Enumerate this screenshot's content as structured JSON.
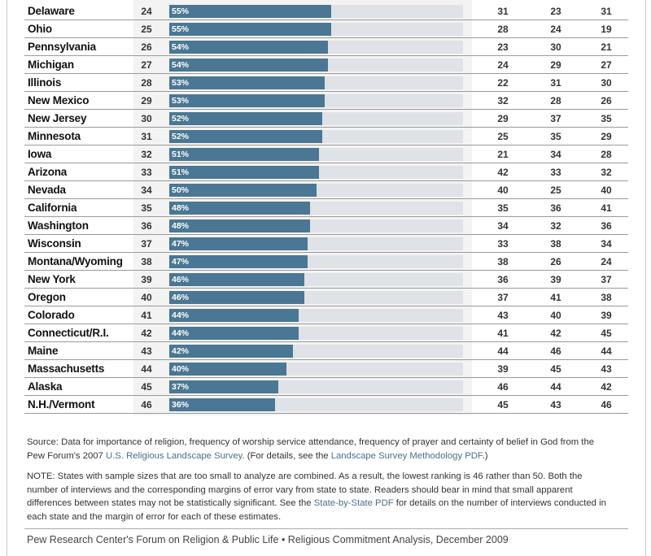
{
  "chart_data": {
    "type": "table",
    "columns": [
      "state",
      "rank",
      "percent",
      "col_a",
      "col_b",
      "col_c"
    ],
    "rows": [
      {
        "state": "Delaware",
        "rank": "24",
        "pct": 55,
        "a": "31",
        "b": "23",
        "c": "31"
      },
      {
        "state": "Ohio",
        "rank": "25",
        "pct": 55,
        "a": "28",
        "b": "24",
        "c": "19"
      },
      {
        "state": "Pennsylvania",
        "rank": "26",
        "pct": 54,
        "a": "23",
        "b": "30",
        "c": "21"
      },
      {
        "state": "Michigan",
        "rank": "27",
        "pct": 54,
        "a": "24",
        "b": "29",
        "c": "27"
      },
      {
        "state": "Illinois",
        "rank": "28",
        "pct": 53,
        "a": "22",
        "b": "31",
        "c": "30"
      },
      {
        "state": "New Mexico",
        "rank": "29",
        "pct": 53,
        "a": "32",
        "b": "28",
        "c": "26"
      },
      {
        "state": "New Jersey",
        "rank": "30",
        "pct": 52,
        "a": "29",
        "b": "37",
        "c": "35"
      },
      {
        "state": "Minnesota",
        "rank": "31",
        "pct": 52,
        "a": "25",
        "b": "35",
        "c": "29"
      },
      {
        "state": "Iowa",
        "rank": "32",
        "pct": 51,
        "a": "21",
        "b": "34",
        "c": "28"
      },
      {
        "state": "Arizona",
        "rank": "33",
        "pct": 51,
        "a": "42",
        "b": "33",
        "c": "32"
      },
      {
        "state": "Nevada",
        "rank": "34",
        "pct": 50,
        "a": "40",
        "b": "25",
        "c": "40"
      },
      {
        "state": "California",
        "rank": "35",
        "pct": 48,
        "a": "35",
        "b": "36",
        "c": "41"
      },
      {
        "state": "Washington",
        "rank": "36",
        "pct": 48,
        "a": "34",
        "b": "32",
        "c": "36"
      },
      {
        "state": "Wisconsin",
        "rank": "37",
        "pct": 47,
        "a": "33",
        "b": "38",
        "c": "34"
      },
      {
        "state": "Montana/Wyoming",
        "rank": "38",
        "pct": 47,
        "a": "38",
        "b": "26",
        "c": "24"
      },
      {
        "state": "New York",
        "rank": "39",
        "pct": 46,
        "a": "36",
        "b": "39",
        "c": "37"
      },
      {
        "state": "Oregon",
        "rank": "40",
        "pct": 46,
        "a": "37",
        "b": "41",
        "c": "38"
      },
      {
        "state": "Colorado",
        "rank": "41",
        "pct": 44,
        "a": "43",
        "b": "40",
        "c": "39"
      },
      {
        "state": "Connecticut/R.I.",
        "rank": "42",
        "pct": 44,
        "a": "41",
        "b": "42",
        "c": "45"
      },
      {
        "state": "Maine",
        "rank": "43",
        "pct": 42,
        "a": "44",
        "b": "46",
        "c": "44"
      },
      {
        "state": "Massachusetts",
        "rank": "44",
        "pct": 40,
        "a": "39",
        "b": "45",
        "c": "43"
      },
      {
        "state": "Alaska",
        "rank": "45",
        "pct": 37,
        "a": "46",
        "b": "44",
        "c": "42"
      },
      {
        "state": "N.H./Vermont",
        "rank": "46",
        "pct": 36,
        "a": "45",
        "b": "43",
        "c": "46"
      }
    ],
    "xlim": [
      0,
      100
    ],
    "bar_color": "#4a7793",
    "track_color": "#dfe2e7"
  },
  "notes": {
    "source_1": "Source: Data for importance of religion, frequency of worship service attendance, frequency of prayer and certainty of belief in God from the Pew Forum's 2007 ",
    "source_link_1": "U.S. Religious Landscape Survey",
    "source_2": ". (For details, see the ",
    "source_link_2": "Landscape Survey Methodology PDF",
    "source_3": ".)",
    "note_1": "NOTE: States with sample sizes that are too small to analyze are combined. As a result, the lowest ranking is 46 rather than 50. Both the number of interviews and the corresponding margins of error vary from state to state. Readers should bear in mind that small apparent differences between states may not be statistically significant. See the ",
    "note_link": "State-by-State PDF",
    "note_2": " for details on the number of interviews conducted in each state and the margin of error for each of these estimates."
  },
  "footer": "Pew Research Center's Forum on Religion & Public Life • Religious Commitment Analysis, December 2009"
}
